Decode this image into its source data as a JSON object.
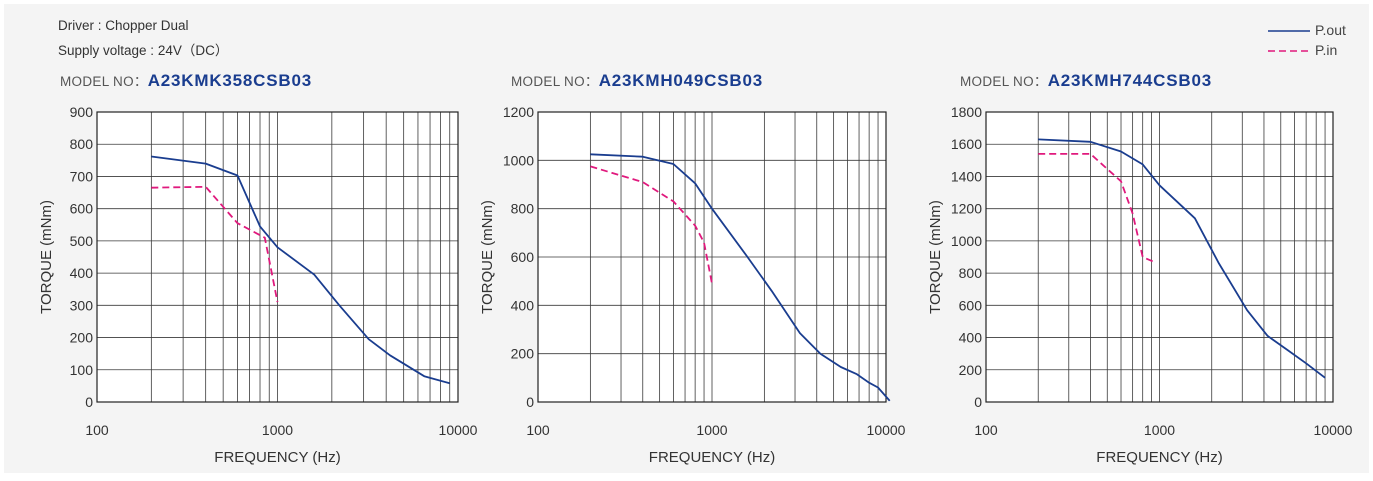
{
  "header": {
    "driver": "Driver : Chopper Dual",
    "supply": "Supply voltage : 24V（DC）"
  },
  "legend": [
    {
      "label": "P.out",
      "color": "#1a3d8f",
      "style": "solid"
    },
    {
      "label": "P.in",
      "color": "#e0197d",
      "style": "dashed"
    }
  ],
  "chart_data": [
    {
      "type": "line",
      "model_prefix": "MODEL NO：",
      "model": "A23KMK358CSB03",
      "xlabel": "FREQUENCY (Hz)",
      "ylabel": "TORQUE (mNm)",
      "x_scale": "log",
      "xlim": [
        100,
        10000
      ],
      "ylim": [
        0,
        900
      ],
      "yticks": [
        0,
        100,
        200,
        300,
        400,
        500,
        600,
        700,
        800,
        900
      ],
      "xticks": [
        100,
        1000,
        10000
      ],
      "grid": true,
      "series": [
        {
          "name": "P.out",
          "color": "#1a3d8f",
          "style": "solid",
          "points": [
            [
              200,
              762
            ],
            [
              400,
              740
            ],
            [
              600,
              703
            ],
            [
              800,
              545
            ],
            [
              1000,
              480
            ],
            [
              1600,
              395
            ],
            [
              2200,
              300
            ],
            [
              3200,
              195
            ],
            [
              4200,
              145
            ],
            [
              6500,
              80
            ],
            [
              9000,
              58
            ]
          ]
        },
        {
          "name": "P.in",
          "color": "#e0197d",
          "style": "dashed",
          "points": [
            [
              200,
              665
            ],
            [
              400,
              668
            ],
            [
              600,
              555
            ],
            [
              850,
              510
            ],
            [
              1000,
              310
            ]
          ]
        }
      ]
    },
    {
      "type": "line",
      "model_prefix": "MODEL NO：",
      "model": "A23KMH049CSB03",
      "xlabel": "FREQUENCY (Hz)",
      "ylabel": "TORQUE (mNm)",
      "x_scale": "log",
      "xlim": [
        100,
        10000
      ],
      "ylim": [
        0,
        1200
      ],
      "yticks": [
        0,
        200,
        400,
        600,
        800,
        1000,
        1200
      ],
      "xticks": [
        100,
        1000,
        10000
      ],
      "grid": true,
      "series": [
        {
          "name": "P.out",
          "color": "#1a3d8f",
          "style": "solid",
          "points": [
            [
              200,
              1025
            ],
            [
              400,
              1015
            ],
            [
              600,
              985
            ],
            [
              800,
              905
            ],
            [
              1000,
              800
            ],
            [
              1600,
              600
            ],
            [
              2200,
              460
            ],
            [
              3200,
              285
            ],
            [
              4200,
              200
            ],
            [
              5500,
              145
            ],
            [
              6800,
              115
            ],
            [
              8000,
              80
            ],
            [
              9000,
              60
            ],
            [
              10500,
              5
            ]
          ]
        },
        {
          "name": "P.in",
          "color": "#e0197d",
          "style": "dashed",
          "points": [
            [
              200,
              975
            ],
            [
              400,
              910
            ],
            [
              600,
              830
            ],
            [
              800,
              730
            ],
            [
              900,
              660
            ],
            [
              1000,
              490
            ]
          ]
        }
      ]
    },
    {
      "type": "line",
      "model_prefix": "MODEL NO：",
      "model": "A23KMH744CSB03",
      "xlabel": "FREQUENCY (Hz)",
      "ylabel": "TORQUE (mNm)",
      "x_scale": "log",
      "xlim": [
        100,
        10000
      ],
      "ylim": [
        0,
        1800
      ],
      "yticks": [
        0,
        200,
        400,
        600,
        800,
        1000,
        1200,
        1400,
        1600,
        1800
      ],
      "xticks": [
        100,
        1000,
        10000
      ],
      "grid": true,
      "series": [
        {
          "name": "P.out",
          "color": "#1a3d8f",
          "style": "solid",
          "points": [
            [
              200,
              1630
            ],
            [
              400,
              1615
            ],
            [
              600,
              1555
            ],
            [
              800,
              1475
            ],
            [
              1000,
              1345
            ],
            [
              1600,
              1140
            ],
            [
              2200,
              860
            ],
            [
              3200,
              570
            ],
            [
              4200,
              410
            ],
            [
              5500,
              320
            ],
            [
              7000,
              240
            ],
            [
              9000,
              150
            ]
          ]
        },
        {
          "name": "P.in",
          "color": "#e0197d",
          "style": "dashed",
          "points": [
            [
              200,
              1540
            ],
            [
              400,
              1540
            ],
            [
              600,
              1370
            ],
            [
              700,
              1170
            ],
            [
              800,
              900
            ],
            [
              950,
              865
            ]
          ]
        }
      ]
    }
  ]
}
